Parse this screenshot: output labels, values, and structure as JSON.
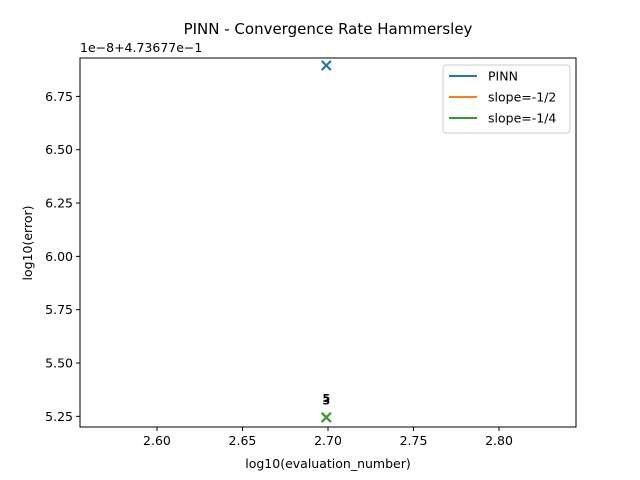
{
  "chart_data": {
    "type": "scatter",
    "title": "PINN - Convergence Rate Hammersley",
    "xlabel": "log10(evaluation_number)",
    "ylabel": "log10(error)",
    "y_offset_label": "1e−8+4.73677e−1",
    "xlim": [
      2.555,
      2.845
    ],
    "ylim": [
      5.2,
      6.93
    ],
    "x_ticks": [
      2.6,
      2.65,
      2.7,
      2.75,
      2.8
    ],
    "x_tick_labels": [
      "2.60",
      "2.65",
      "2.70",
      "2.75",
      "2.80"
    ],
    "y_ticks": [
      5.25,
      5.5,
      5.75,
      6.0,
      6.25,
      6.5,
      6.75
    ],
    "y_tick_labels": [
      "5.25",
      "5.50",
      "5.75",
      "6.00",
      "6.25",
      "6.50",
      "6.75"
    ],
    "grid": false,
    "legend_position": "top-right",
    "series": [
      {
        "name": "PINN",
        "color": "#1f77b4",
        "marker": "x",
        "points": [
          [
            2.699,
            6.895
          ]
        ]
      },
      {
        "name": "slope=-1/2",
        "color": "#ff7f0e",
        "marker": "x",
        "points": [
          [
            2.699,
            5.245
          ]
        ]
      },
      {
        "name": "slope=-1/4",
        "color": "#2ca02c",
        "marker": "x",
        "points": [
          [
            2.699,
            5.245
          ]
        ]
      }
    ],
    "annotations": [
      {
        "text": "5",
        "x": 2.699,
        "y": 5.335
      },
      {
        "text": "3",
        "x": 2.699,
        "y": 5.325
      }
    ]
  }
}
